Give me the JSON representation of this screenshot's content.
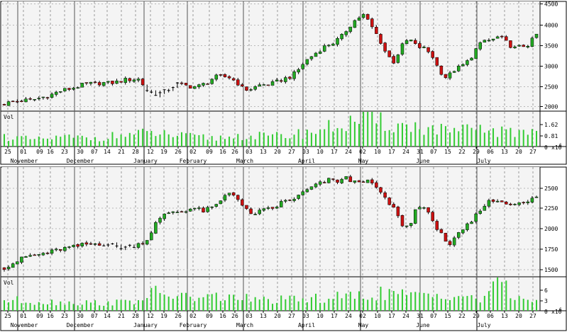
{
  "chart_data": [
    {
      "type": "candlestick",
      "x_tick_labels": [
        "25",
        "01",
        "09",
        "16",
        "23",
        "30",
        "07",
        "14",
        "21",
        "28",
        "12",
        "19",
        "26",
        "02",
        "09",
        "16",
        "26",
        "03",
        "13",
        "20",
        "27",
        "03",
        "10",
        "17",
        "24",
        "02",
        "10",
        "17",
        "24",
        "31",
        "07",
        "15",
        "22",
        "29",
        "06",
        "13",
        "20",
        "27"
      ],
      "month_labels": [
        "November",
        "December",
        "January",
        "February",
        "March",
        "April",
        "May",
        "June",
        "July"
      ],
      "y_tick_labels": [
        "2000",
        "2500",
        "3000",
        "3500",
        "4000",
        "4500"
      ],
      "ylim": [
        1800,
        4500
      ],
      "volume": {
        "label": "Vol",
        "tick_labels": [
          "0",
          "0.81",
          "1.62"
        ],
        "multiplier_label": "x10",
        "multiplier_exponent": "6",
        "ylim": [
          0,
          2.0
        ]
      },
      "close_path": [
        [
          0,
          1950
        ],
        [
          1,
          2000
        ],
        [
          3,
          2040
        ],
        [
          4,
          2060
        ],
        [
          5,
          2110
        ],
        [
          6,
          2160
        ],
        [
          7,
          2240
        ],
        [
          8,
          2300
        ],
        [
          9,
          2340
        ],
        [
          10,
          2400
        ],
        [
          11,
          2450
        ],
        [
          12,
          2460
        ],
        [
          13,
          2480
        ],
        [
          14,
          2470
        ],
        [
          15,
          2500
        ],
        [
          16,
          2550
        ],
        [
          17,
          2570
        ],
        [
          18,
          2570
        ],
        [
          19,
          2300
        ],
        [
          20,
          2200
        ],
        [
          21,
          2220
        ],
        [
          22,
          2320
        ],
        [
          23,
          2450
        ],
        [
          24,
          2420
        ],
        [
          25,
          2380
        ],
        [
          26,
          2400
        ],
        [
          27,
          2480
        ],
        [
          28,
          2620
        ],
        [
          29,
          2640
        ],
        [
          30,
          2620
        ],
        [
          31,
          2500
        ],
        [
          32,
          2300
        ],
        [
          33,
          2330
        ],
        [
          34,
          2420
        ],
        [
          35,
          2440
        ],
        [
          36,
          2470
        ],
        [
          37,
          2560
        ],
        [
          38,
          2620
        ],
        [
          39,
          2750
        ],
        [
          40,
          3000
        ],
        [
          41,
          3150
        ],
        [
          42,
          3300
        ],
        [
          43,
          3430
        ],
        [
          44,
          3500
        ],
        [
          45,
          3650
        ],
        [
          46,
          3900
        ],
        [
          47,
          4100
        ],
        [
          48,
          4200
        ],
        [
          49,
          3900
        ],
        [
          50,
          3600
        ],
        [
          51,
          3200
        ],
        [
          52,
          3000
        ],
        [
          53,
          3400
        ],
        [
          54,
          3600
        ],
        [
          55,
          3400
        ],
        [
          56,
          3350
        ],
        [
          57,
          3200
        ],
        [
          58,
          2800
        ],
        [
          59,
          2600
        ],
        [
          60,
          2800
        ],
        [
          61,
          2900
        ],
        [
          62,
          3050
        ],
        [
          63,
          3350
        ],
        [
          64,
          3550
        ],
        [
          65,
          3550
        ],
        [
          66,
          3650
        ],
        [
          67,
          3500
        ],
        [
          68,
          3350
        ],
        [
          69,
          3400
        ],
        [
          70,
          3450
        ],
        [
          71,
          3700
        ]
      ],
      "volume_path": [
        [
          0,
          0.6
        ],
        [
          4,
          0.4
        ],
        [
          8,
          0.55
        ],
        [
          12,
          0.5
        ],
        [
          16,
          0.7
        ],
        [
          20,
          0.8
        ],
        [
          24,
          0.6
        ],
        [
          28,
          0.5
        ],
        [
          32,
          0.65
        ],
        [
          36,
          0.6
        ],
        [
          40,
          0.8
        ],
        [
          44,
          1.2
        ],
        [
          48,
          1.6
        ],
        [
          52,
          1.3
        ],
        [
          56,
          1.1
        ],
        [
          60,
          0.9
        ],
        [
          64,
          1.0
        ],
        [
          68,
          0.8
        ],
        [
          71,
          1.1
        ]
      ]
    },
    {
      "type": "candlestick",
      "x_tick_labels": [
        "25",
        "01",
        "09",
        "16",
        "23",
        "30",
        "07",
        "14",
        "21",
        "28",
        "12",
        "19",
        "26",
        "02",
        "09",
        "16",
        "26",
        "03",
        "13",
        "20",
        "27",
        "03",
        "10",
        "17",
        "24",
        "02",
        "10",
        "17",
        "24",
        "31",
        "07",
        "15",
        "22",
        "29",
        "06",
        "13",
        "20",
        "27"
      ],
      "month_labels": [
        "November",
        "December",
        "January",
        "February",
        "March",
        "April",
        "May",
        "June",
        "July"
      ],
      "y_tick_labels": [
        "1500",
        "1750",
        "2000",
        "2250",
        "2500"
      ],
      "ylim": [
        1350,
        2700
      ],
      "volume": {
        "label": "Vol",
        "tick_labels": [
          "0",
          "3",
          "6"
        ],
        "multiplier_label": "x10",
        "multiplier_exponent": "6",
        "ylim": [
          0,
          9
        ]
      },
      "close_path": [
        [
          0,
          1450
        ],
        [
          1,
          1500
        ],
        [
          2,
          1550
        ],
        [
          3,
          1600
        ],
        [
          4,
          1600
        ],
        [
          5,
          1630
        ],
        [
          6,
          1650
        ],
        [
          7,
          1680
        ],
        [
          8,
          1700
        ],
        [
          9,
          1710
        ],
        [
          10,
          1740
        ],
        [
          11,
          1750
        ],
        [
          12,
          1750
        ],
        [
          13,
          1740
        ],
        [
          14,
          1720
        ],
        [
          15,
          1700
        ],
        [
          16,
          1720
        ],
        [
          17,
          1750
        ],
        [
          18,
          1800
        ],
        [
          19,
          2000
        ],
        [
          20,
          2100
        ],
        [
          21,
          2160
        ],
        [
          22,
          2150
        ],
        [
          23,
          2180
        ],
        [
          24,
          2200
        ],
        [
          25,
          2160
        ],
        [
          26,
          2200
        ],
        [
          27,
          2250
        ],
        [
          28,
          2400
        ],
        [
          29,
          2380
        ],
        [
          30,
          2220
        ],
        [
          31,
          2120
        ],
        [
          32,
          2150
        ],
        [
          33,
          2180
        ],
        [
          34,
          2200
        ],
        [
          35,
          2280
        ],
        [
          36,
          2300
        ],
        [
          37,
          2350
        ],
        [
          38,
          2420
        ],
        [
          39,
          2480
        ],
        [
          40,
          2520
        ],
        [
          41,
          2560
        ],
        [
          42,
          2540
        ],
        [
          43,
          2580
        ],
        [
          44,
          2520
        ],
        [
          45,
          2560
        ],
        [
          46,
          2520
        ],
        [
          47,
          2450
        ],
        [
          48,
          2300
        ],
        [
          49,
          2200
        ],
        [
          50,
          2000
        ],
        [
          51,
          1950
        ],
        [
          52,
          2250
        ],
        [
          53,
          2200
        ],
        [
          54,
          2000
        ],
        [
          55,
          1900
        ],
        [
          56,
          1700
        ],
        [
          57,
          1850
        ],
        [
          58,
          1950
        ],
        [
          59,
          2050
        ],
        [
          60,
          2200
        ],
        [
          61,
          2280
        ],
        [
          62,
          2300
        ],
        [
          63,
          2270
        ],
        [
          64,
          2260
        ],
        [
          65,
          2250
        ],
        [
          66,
          2280
        ],
        [
          67,
          2350
        ]
      ],
      "volume_path": [
        [
          0,
          3
        ],
        [
          6,
          2.5
        ],
        [
          12,
          2.2
        ],
        [
          16,
          2.5
        ],
        [
          19,
          5
        ],
        [
          24,
          3.5
        ],
        [
          28,
          4
        ],
        [
          32,
          3
        ],
        [
          36,
          3
        ],
        [
          40,
          3.5
        ],
        [
          44,
          4
        ],
        [
          48,
          5
        ],
        [
          52,
          4
        ],
        [
          56,
          5
        ],
        [
          60,
          3
        ],
        [
          62,
          9
        ],
        [
          64,
          4
        ],
        [
          67,
          3
        ]
      ]
    }
  ]
}
